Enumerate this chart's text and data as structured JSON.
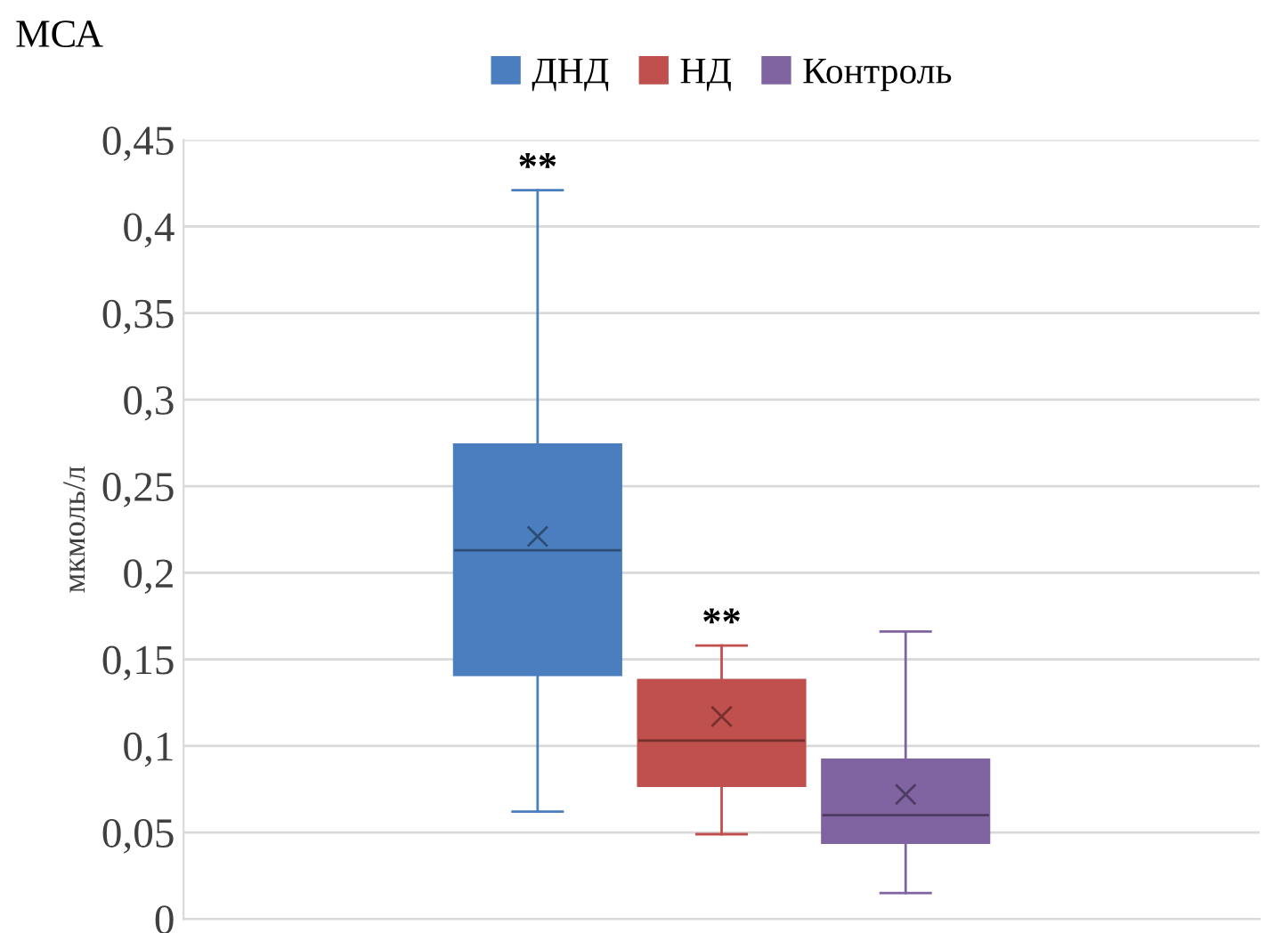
{
  "chart_data": {
    "type": "box",
    "title": "МСА",
    "ylabel": "мкмоль/л",
    "categories": [
      null
    ],
    "series": [
      {
        "name": "ДНД",
        "color": "#4a7ebf",
        "boxes": [
          {
            "low": 0.062,
            "q1": 0.141,
            "median": 0.213,
            "q3": 0.274,
            "high": 0.421,
            "mean": 0.221
          }
        ]
      },
      {
        "name": "НД",
        "color": "#c0504d",
        "boxes": [
          {
            "low": 0.049,
            "q1": 0.077,
            "median": 0.103,
            "q3": 0.138,
            "high": 0.158,
            "mean": 0.117
          }
        ]
      },
      {
        "name": "Контроль",
        "color": "#8064a2",
        "boxes": [
          {
            "low": 0.015,
            "q1": 0.044,
            "median": 0.06,
            "q3": 0.092,
            "high": 0.166,
            "mean": 0.072
          }
        ]
      }
    ],
    "annotations": [
      {
        "text": "**",
        "y": 0.421
      },
      {
        "text": "**",
        "y": 0.158
      }
    ],
    "ylim": [
      0,
      0.45
    ],
    "yticks": [
      {
        "value": 0,
        "label": "0"
      },
      {
        "value": 0.05,
        "label": "0,05"
      },
      {
        "value": 0.1,
        "label": "0,1"
      },
      {
        "value": 0.15,
        "label": "0,15"
      },
      {
        "value": 0.2,
        "label": "0,2"
      },
      {
        "value": 0.25,
        "label": "0,25"
      },
      {
        "value": 0.3,
        "label": "0,3"
      },
      {
        "value": 0.35,
        "label": "0,35"
      },
      {
        "value": 0.4,
        "label": "0,4"
      },
      {
        "value": 0.45,
        "label": "0,45"
      }
    ],
    "grid": "y",
    "legend": "top",
    "marker": "cross"
  }
}
